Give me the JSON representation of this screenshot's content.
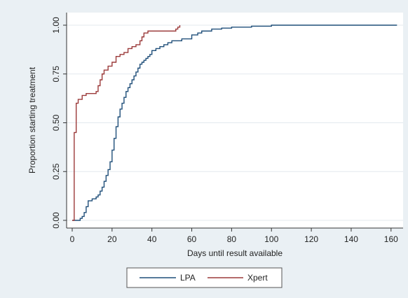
{
  "chart_data": {
    "type": "line",
    "title": "",
    "xlabel": "Days until result available",
    "ylabel": "Proportion starting treatment",
    "xlim": [
      0,
      165
    ],
    "ylim": [
      0,
      1.0
    ],
    "xticks": [
      0,
      20,
      40,
      60,
      80,
      100,
      120,
      140,
      160
    ],
    "yticks": [
      0,
      0.25,
      0.5,
      0.75,
      1.0
    ],
    "xtick_labels": [
      "0",
      "20",
      "40",
      "60",
      "80",
      "100",
      "120",
      "140",
      "160"
    ],
    "ytick_labels": [
      "0.00",
      "0.25",
      "0.50",
      "0.75",
      "1.00"
    ],
    "grid": "horizontal",
    "legend_position": "bottom",
    "step": true,
    "series": [
      {
        "name": "LPA",
        "color": "#1f4e79",
        "x": [
          0,
          4,
          5,
          6,
          7,
          8,
          10,
          12,
          13,
          14,
          15,
          16,
          17,
          18,
          19,
          20,
          21,
          22,
          23,
          24,
          25,
          26,
          27,
          28,
          29,
          30,
          31,
          32,
          33,
          34,
          35,
          36,
          37,
          38,
          39,
          40,
          42,
          44,
          46,
          48,
          50,
          55,
          60,
          63,
          65,
          70,
          75,
          80,
          90,
          100,
          163
        ],
        "y": [
          0,
          0.01,
          0.02,
          0.04,
          0.07,
          0.1,
          0.11,
          0.12,
          0.13,
          0.15,
          0.17,
          0.2,
          0.23,
          0.26,
          0.3,
          0.36,
          0.42,
          0.48,
          0.53,
          0.57,
          0.6,
          0.63,
          0.66,
          0.68,
          0.7,
          0.72,
          0.74,
          0.76,
          0.78,
          0.8,
          0.81,
          0.82,
          0.83,
          0.84,
          0.85,
          0.87,
          0.88,
          0.89,
          0.9,
          0.91,
          0.92,
          0.93,
          0.95,
          0.96,
          0.97,
          0.98,
          0.985,
          0.99,
          0.995,
          1.0,
          1.0
        ]
      },
      {
        "name": "Xpert",
        "color": "#9b3a3a",
        "x": [
          0,
          1,
          2,
          3,
          5,
          7,
          10,
          12,
          13,
          14,
          15,
          16,
          18,
          20,
          22,
          24,
          26,
          28,
          30,
          32,
          34,
          35,
          36,
          38,
          40,
          50,
          52,
          53,
          54
        ],
        "y": [
          0,
          0.45,
          0.6,
          0.62,
          0.64,
          0.65,
          0.65,
          0.66,
          0.69,
          0.72,
          0.75,
          0.77,
          0.79,
          0.81,
          0.84,
          0.85,
          0.86,
          0.88,
          0.89,
          0.9,
          0.92,
          0.94,
          0.96,
          0.97,
          0.97,
          0.97,
          0.98,
          0.99,
          1.0
        ]
      }
    ]
  }
}
